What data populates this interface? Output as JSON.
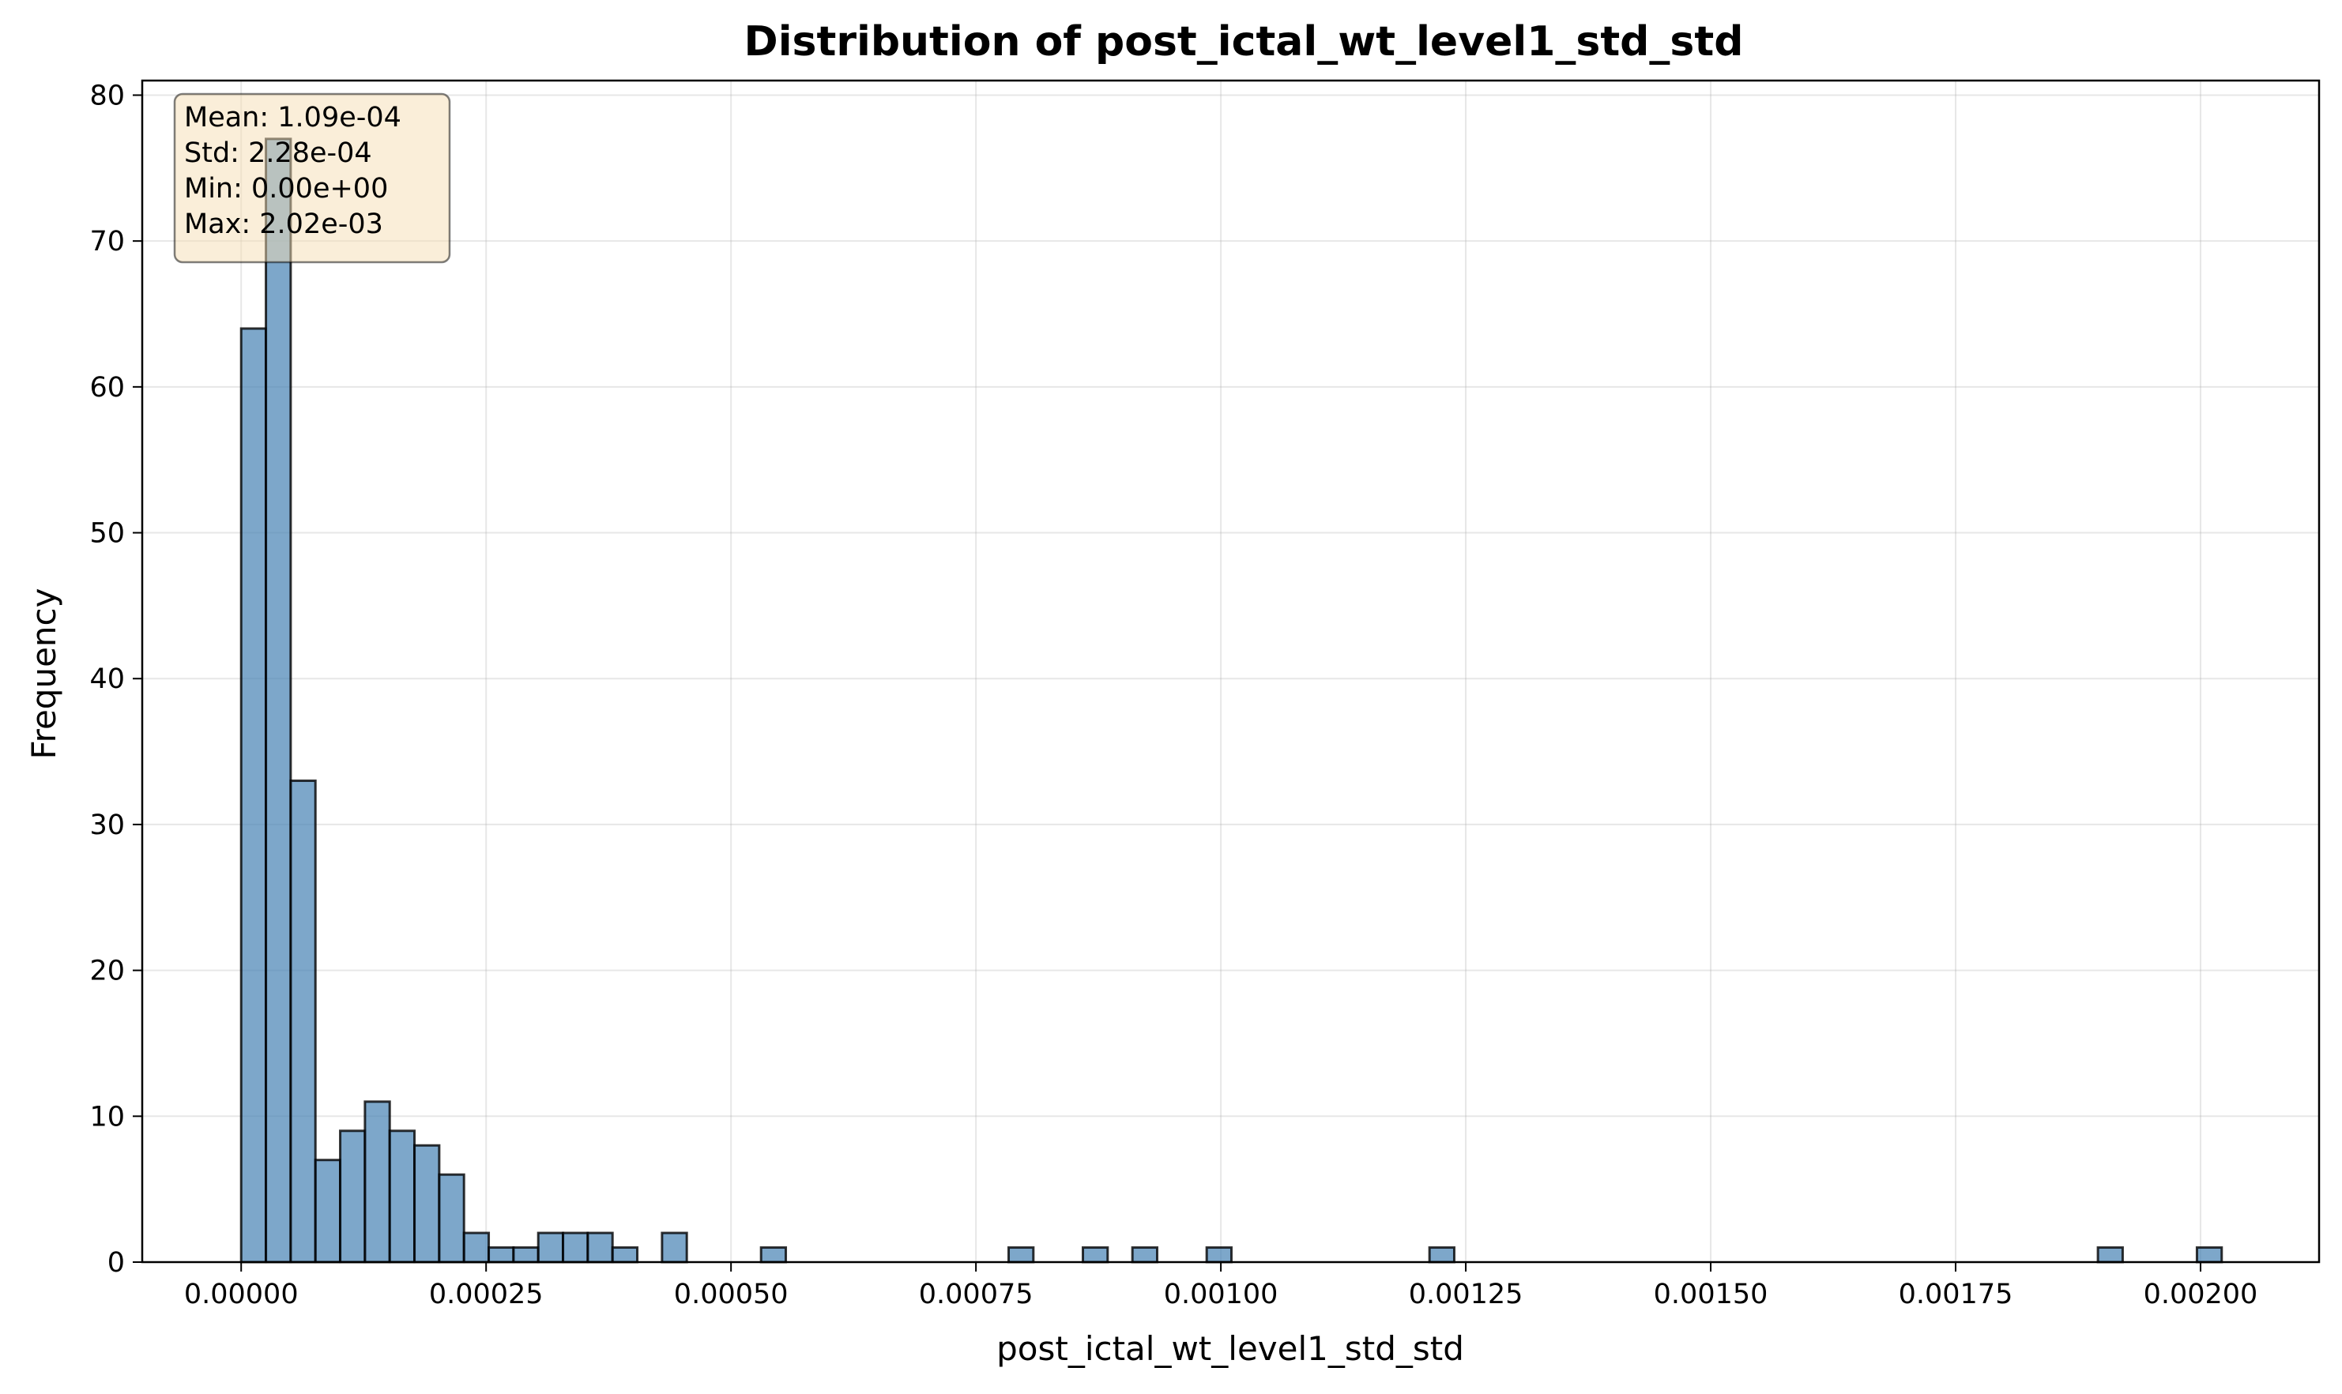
{
  "chart_data": {
    "type": "bar",
    "title": "Distribution of post_ictal_wt_level1_std_std",
    "xlabel": "post_ictal_wt_level1_std_std",
    "ylabel": "Frequency",
    "xlim": [
      -0.000101,
      0.002121
    ],
    "ylim": [
      0,
      81
    ],
    "xticks": [
      0,
      0.00025,
      0.0005,
      0.00075,
      0.001,
      0.00125,
      0.0015,
      0.00175,
      0.002
    ],
    "xtick_labels": [
      "0.00000",
      "0.00025",
      "0.00050",
      "0.00075",
      "0.00100",
      "0.00125",
      "0.00150",
      "0.00175",
      "0.00200"
    ],
    "yticks": [
      0,
      10,
      20,
      30,
      40,
      50,
      60,
      70,
      80
    ],
    "ytick_labels": [
      "0",
      "10",
      "20",
      "30",
      "40",
      "50",
      "60",
      "70",
      "80"
    ],
    "grid": true,
    "bin_start": 0.0,
    "bin_width": 2.527e-05,
    "counts": [
      64,
      77,
      33,
      7,
      9,
      11,
      9,
      8,
      6,
      2,
      1,
      1,
      2,
      2,
      2,
      1,
      0,
      2,
      0,
      0,
      0,
      1,
      0,
      0,
      0,
      0,
      0,
      0,
      0,
      0,
      0,
      1,
      0,
      0,
      1,
      0,
      1,
      0,
      0,
      1,
      0,
      0,
      0,
      0,
      0,
      0,
      0,
      0,
      1,
      0,
      0,
      0,
      0,
      0,
      0,
      0,
      0,
      0,
      0,
      0,
      0,
      0,
      0,
      0,
      0,
      0,
      0,
      0,
      0,
      0,
      0,
      0,
      0,
      0,
      0,
      1,
      0,
      0,
      0,
      1
    ],
    "stats_box": {
      "position": "top-left",
      "lines": [
        "Mean: 1.09e-04",
        "Std: 2.28e-04",
        "Min: 0.00e+00",
        "Max: 2.02e-03"
      ]
    },
    "colors": {
      "bar_fill": "#4682b4",
      "bar_edge": "#000000",
      "stats_box_fill": "#f5deb3"
    }
  }
}
